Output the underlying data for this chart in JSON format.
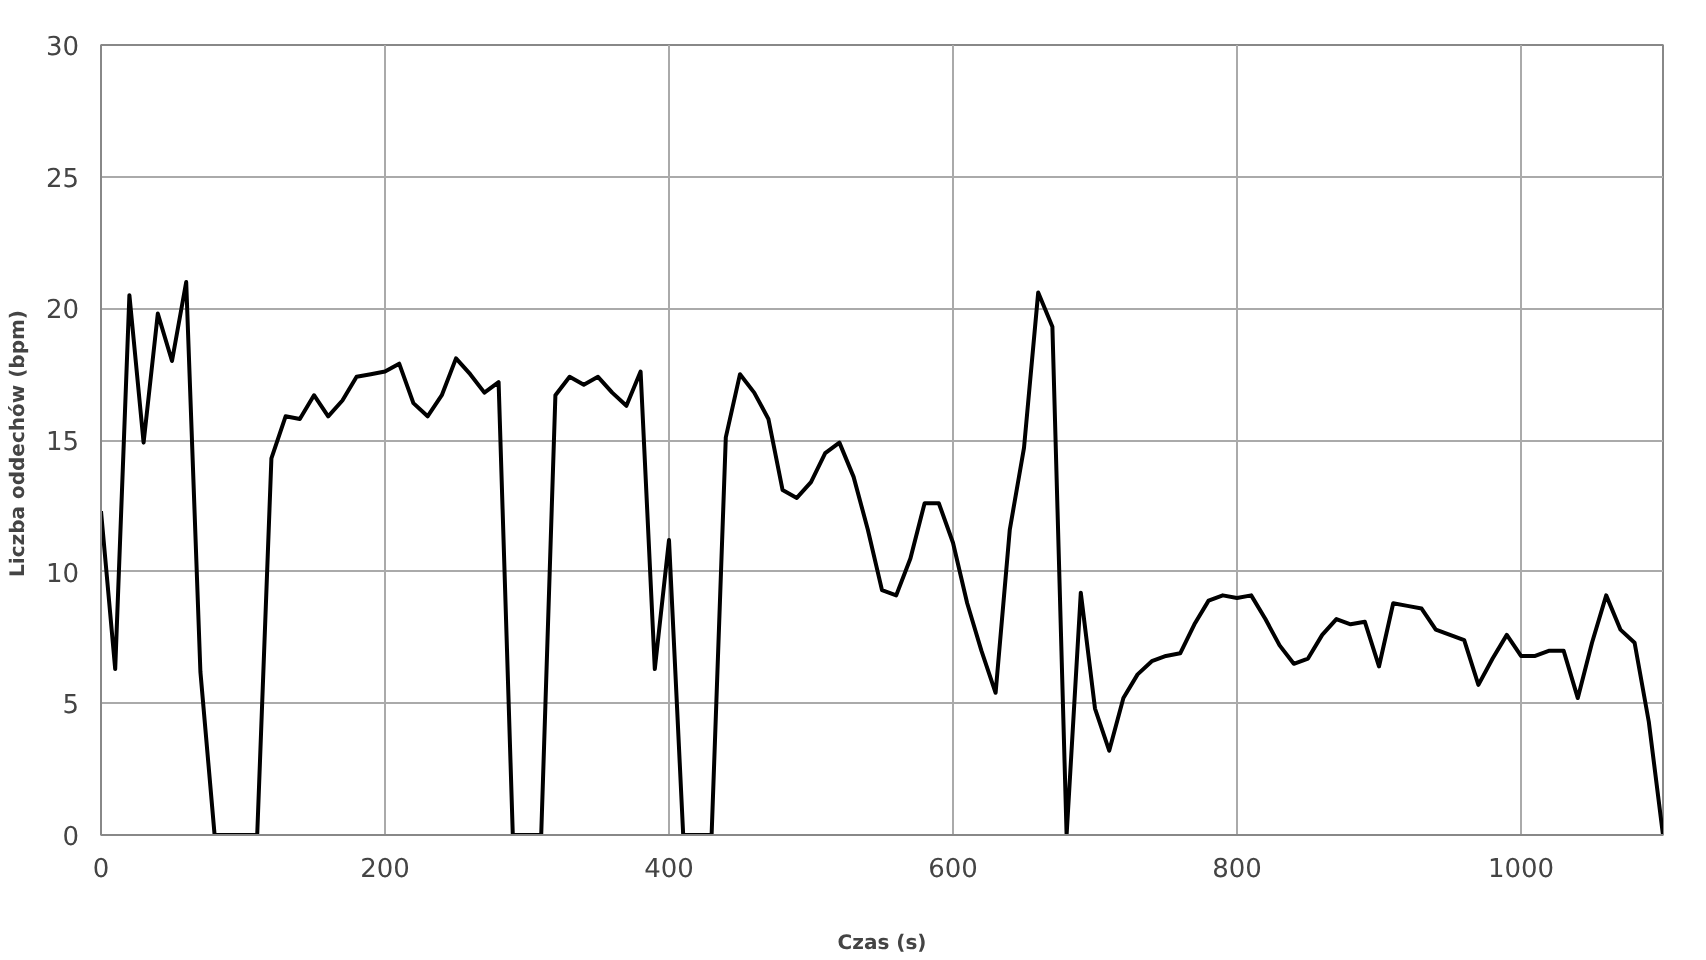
{
  "chart_data": {
    "type": "line",
    "xlabel": "Czas (s)",
    "ylabel": "Liczba oddechów  (bpm)",
    "x": [
      0,
      10,
      20,
      30,
      40,
      50,
      60,
      70,
      80,
      90,
      100,
      110,
      120,
      130,
      140,
      150,
      160,
      170,
      180,
      190,
      200,
      210,
      220,
      230,
      240,
      250,
      260,
      270,
      280,
      290,
      300,
      310,
      320,
      330,
      340,
      350,
      360,
      370,
      380,
      390,
      400,
      410,
      420,
      430,
      440,
      450,
      460,
      470,
      480,
      490,
      500,
      510,
      520,
      530,
      540,
      550,
      560,
      570,
      580,
      590,
      600,
      610,
      620,
      630,
      640,
      650,
      660,
      670,
      680,
      690,
      700,
      710,
      720,
      730,
      740,
      750,
      760,
      770,
      780,
      790,
      800,
      810,
      820,
      830,
      840,
      850,
      860,
      870,
      880,
      890,
      900,
      910,
      920,
      930,
      940,
      950,
      960,
      970,
      980,
      990,
      1000,
      1010,
      1020,
      1030,
      1040,
      1050,
      1060,
      1070,
      1080,
      1090,
      1100
    ],
    "series": [
      {
        "color": "#000000",
        "values": [
          12.3,
          6.3,
          20.5,
          14.9,
          19.8,
          18,
          21,
          6.2,
          0,
          0,
          0,
          0,
          14.3,
          15.9,
          15.8,
          16.7,
          15.9,
          16.5,
          17.4,
          17.5,
          17.6,
          17.9,
          16.4,
          15.9,
          16.7,
          18.1,
          17.5,
          16.8,
          17.2,
          0,
          0,
          0,
          16.7,
          17.4,
          17.1,
          17.4,
          16.8,
          16.3,
          17.6,
          6.3,
          11.2,
          0,
          0,
          0,
          15.1,
          17.5,
          16.8,
          15.8,
          13.1,
          12.8,
          13.4,
          14.5,
          14.9,
          13.6,
          11.6,
          9.3,
          9.1,
          10.5,
          12.6,
          12.6,
          11.1,
          8.8,
          7.0,
          5.4,
          11.6,
          14.7,
          20.6,
          19.3,
          0,
          9.2,
          4.8,
          3.2,
          5.2,
          6.1,
          6.6,
          6.8,
          6.9,
          8.0,
          8.9,
          9.1,
          9.0,
          9.1,
          8.2,
          7.2,
          6.5,
          6.7,
          7.6,
          8.2,
          8.0,
          8.1,
          6.4,
          8.8,
          8.7,
          8.6,
          7.8,
          7.6,
          7.4,
          5.7,
          6.7,
          7.6,
          6.8,
          6.8,
          7.0,
          7.0,
          5.2,
          7.3,
          9.1,
          7.8,
          7.3,
          4.3,
          0
        ]
      }
    ],
    "xlim": [
      0,
      1100
    ],
    "xticks": [
      0,
      200,
      400,
      600,
      800,
      1000
    ],
    "ylim": [
      0,
      30
    ],
    "yticks": [
      0,
      5,
      10,
      15,
      20,
      25,
      30
    ],
    "grid": true,
    "marker": "none",
    "line_style": "solid"
  }
}
